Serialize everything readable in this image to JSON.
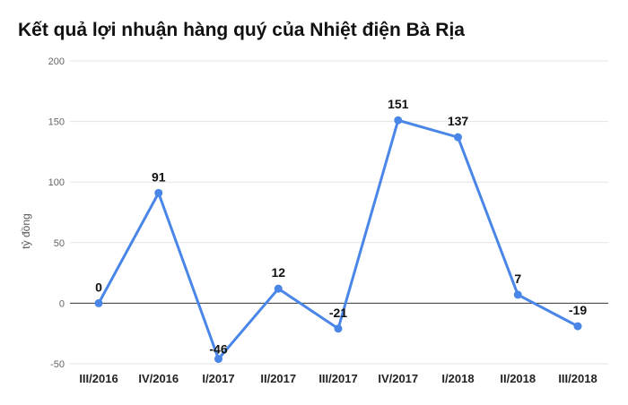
{
  "chart_data": {
    "type": "line",
    "title": "Kết quả lợi nhuận hàng quý của Nhiệt điện Bà Rịa",
    "xlabel": "",
    "ylabel": "tỷ đồng",
    "categories": [
      "III/2016",
      "IV/2016",
      "I/2017",
      "II/2017",
      "III/2017",
      "IV/2017",
      "I/2018",
      "II/2018",
      "III/2018"
    ],
    "series": [
      {
        "values": [
          0,
          91,
          -46,
          12,
          -21,
          151,
          137,
          7,
          -19
        ]
      }
    ],
    "data_labels": [
      "0",
      "91",
      "-46",
      "12",
      "-21",
      "151",
      "137",
      "7",
      "-19"
    ],
    "ylim": [
      -50,
      200
    ],
    "yticks": [
      -50,
      0,
      50,
      100,
      150,
      200
    ],
    "ytick_labels": [
      "-50",
      "0",
      "50",
      "100",
      "150",
      "200"
    ],
    "grid": true,
    "legend": "none",
    "colors": {
      "line": "#4a86e8",
      "grid": "#e3e3e3",
      "zero_line": "#333333"
    }
  }
}
